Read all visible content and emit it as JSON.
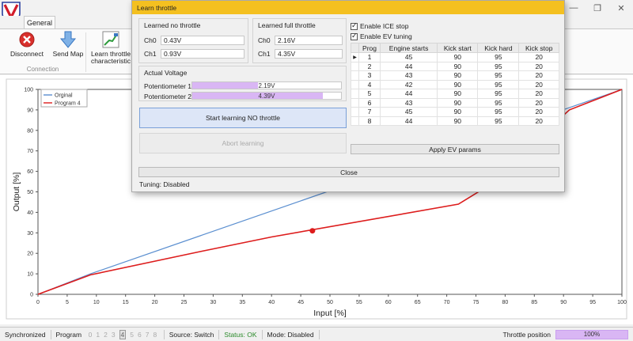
{
  "window": {
    "controls": [
      "—",
      "❐",
      "✕"
    ]
  },
  "ribbon": {
    "tab": "General",
    "disconnect_label": "Disconnect",
    "sendmap_label": "Send Map",
    "learn_label_1": "Learn throttle",
    "learn_label_2": "characteristic",
    "group_label": "Connection"
  },
  "chart_data": {
    "type": "line",
    "xlabel": "Input [%]",
    "ylabel": "Output [%]",
    "xlim": [
      0,
      100
    ],
    "ylim": [
      0,
      100
    ],
    "xticks": [
      0,
      5,
      10,
      15,
      20,
      25,
      30,
      35,
      40,
      45,
      50,
      55,
      60,
      65,
      70,
      75,
      80,
      85,
      90,
      95,
      100
    ],
    "yticks": [
      0,
      10,
      20,
      30,
      40,
      50,
      60,
      70,
      80,
      90,
      100
    ],
    "grid": false,
    "legend": "top-left",
    "series": [
      {
        "name": "Orginal",
        "color": "#5b8fd0",
        "x": [
          0,
          9,
          100
        ],
        "y": [
          0,
          10,
          100
        ]
      },
      {
        "name": "Program 4",
        "color": "#dd1c1c",
        "x": [
          0,
          9,
          28,
          40,
          72,
          76,
          91,
          100
        ],
        "y": [
          0,
          9.5,
          21,
          28,
          44,
          51,
          90,
          100
        ]
      }
    ],
    "marker": {
      "x": 47,
      "y": 31,
      "color": "#dd1c1c"
    }
  },
  "dialog": {
    "title": "Learn throttle",
    "no_throttle": {
      "title": "Learned no throttle",
      "ch0_label": "Ch0",
      "ch0": "0.43V",
      "ch1_label": "Ch1",
      "ch1": "0.93V"
    },
    "full_throttle": {
      "title": "Learned full throttle",
      "ch0_label": "Ch0",
      "ch0": "2.16V",
      "ch1_label": "Ch1",
      "ch1": "4.35V"
    },
    "actual_voltage": {
      "title": "Actual Voltage",
      "pot1_label": "Potentiometer 1",
      "pot1_value": "2.19V",
      "pot1_fill": 0.44,
      "pot2_label": "Potentiometer 2",
      "pot2_value": "4.39V",
      "pot2_fill": 0.88
    },
    "start_label": "Start learning NO throttle",
    "abort_label": "Abort learning",
    "enable_ice": "Enable ICE stop",
    "enable_ev": "Enable EV tuning",
    "table": {
      "columns": [
        "Prog",
        "Engine starts",
        "Kick start",
        "Kick hard",
        "Kick stop"
      ],
      "rows": [
        [
          "1",
          "45",
          "90",
          "95",
          "20"
        ],
        [
          "2",
          "44",
          "90",
          "95",
          "20"
        ],
        [
          "3",
          "43",
          "90",
          "95",
          "20"
        ],
        [
          "4",
          "42",
          "90",
          "95",
          "20"
        ],
        [
          "5",
          "44",
          "90",
          "95",
          "20"
        ],
        [
          "6",
          "43",
          "90",
          "95",
          "20"
        ],
        [
          "7",
          "45",
          "90",
          "95",
          "20"
        ],
        [
          "8",
          "44",
          "90",
          "95",
          "20"
        ]
      ],
      "selected_indicator": "▶"
    },
    "apply_label": "Apply EV params",
    "close_label": "Close",
    "tuning_status": "Tuning: Disabled"
  },
  "statusbar": {
    "sync": "Synchronized",
    "program_label": "Program",
    "programs": [
      "0",
      "1",
      "2",
      "3",
      "4",
      "5",
      "6",
      "7",
      "8"
    ],
    "active_program": "4",
    "source": "Source: Switch",
    "status": "Status: OK",
    "mode": "Mode: Disabled",
    "throttle_label": "Throttle position",
    "throttle_value": "100%"
  },
  "colors": {
    "accent": "#f4c020",
    "progress": "#d9b6f4",
    "ok": "#2a8a2a"
  }
}
